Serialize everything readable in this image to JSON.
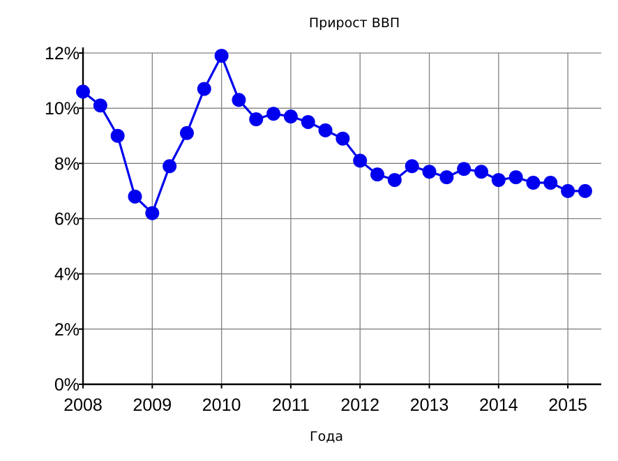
{
  "chart_data": {
    "type": "line",
    "title": "Прирост ВВП",
    "xlabel": "Года",
    "ylabel": "",
    "xlim": [
      2008,
      2015.5
    ],
    "ylim": [
      0,
      12
    ],
    "x_ticks": [
      "2008",
      "2009",
      "2010",
      "2011",
      "2012",
      "2013",
      "2014",
      "2015"
    ],
    "y_ticks": [
      "0%",
      "2%",
      "4%",
      "6%",
      "8%",
      "10%",
      "12%"
    ],
    "grid": true,
    "legend": "none",
    "color": "#0000ee",
    "series": [
      {
        "x": [
          2008,
          2008.25,
          2008.5,
          2008.75,
          2009,
          2009.25,
          2009.5,
          2009.75,
          2010,
          2010.25,
          2010.5,
          2010.75,
          2011,
          2011.25,
          2011.5,
          2011.75,
          2012,
          2012.25,
          2012.5,
          2012.75,
          2013,
          2013.25,
          2013.5,
          2013.75,
          2014,
          2014.25,
          2014.5,
          2014.75,
          2015,
          2015.25
        ],
        "values": [
          10.6,
          10.1,
          9.0,
          6.8,
          6.2,
          7.9,
          9.1,
          10.7,
          11.9,
          10.3,
          9.6,
          9.8,
          9.7,
          9.5,
          9.2,
          8.9,
          8.1,
          7.6,
          7.4,
          7.9,
          7.7,
          7.5,
          7.8,
          7.7,
          7.4,
          7.5,
          7.3,
          7.3,
          7.0,
          7.0
        ]
      }
    ]
  }
}
